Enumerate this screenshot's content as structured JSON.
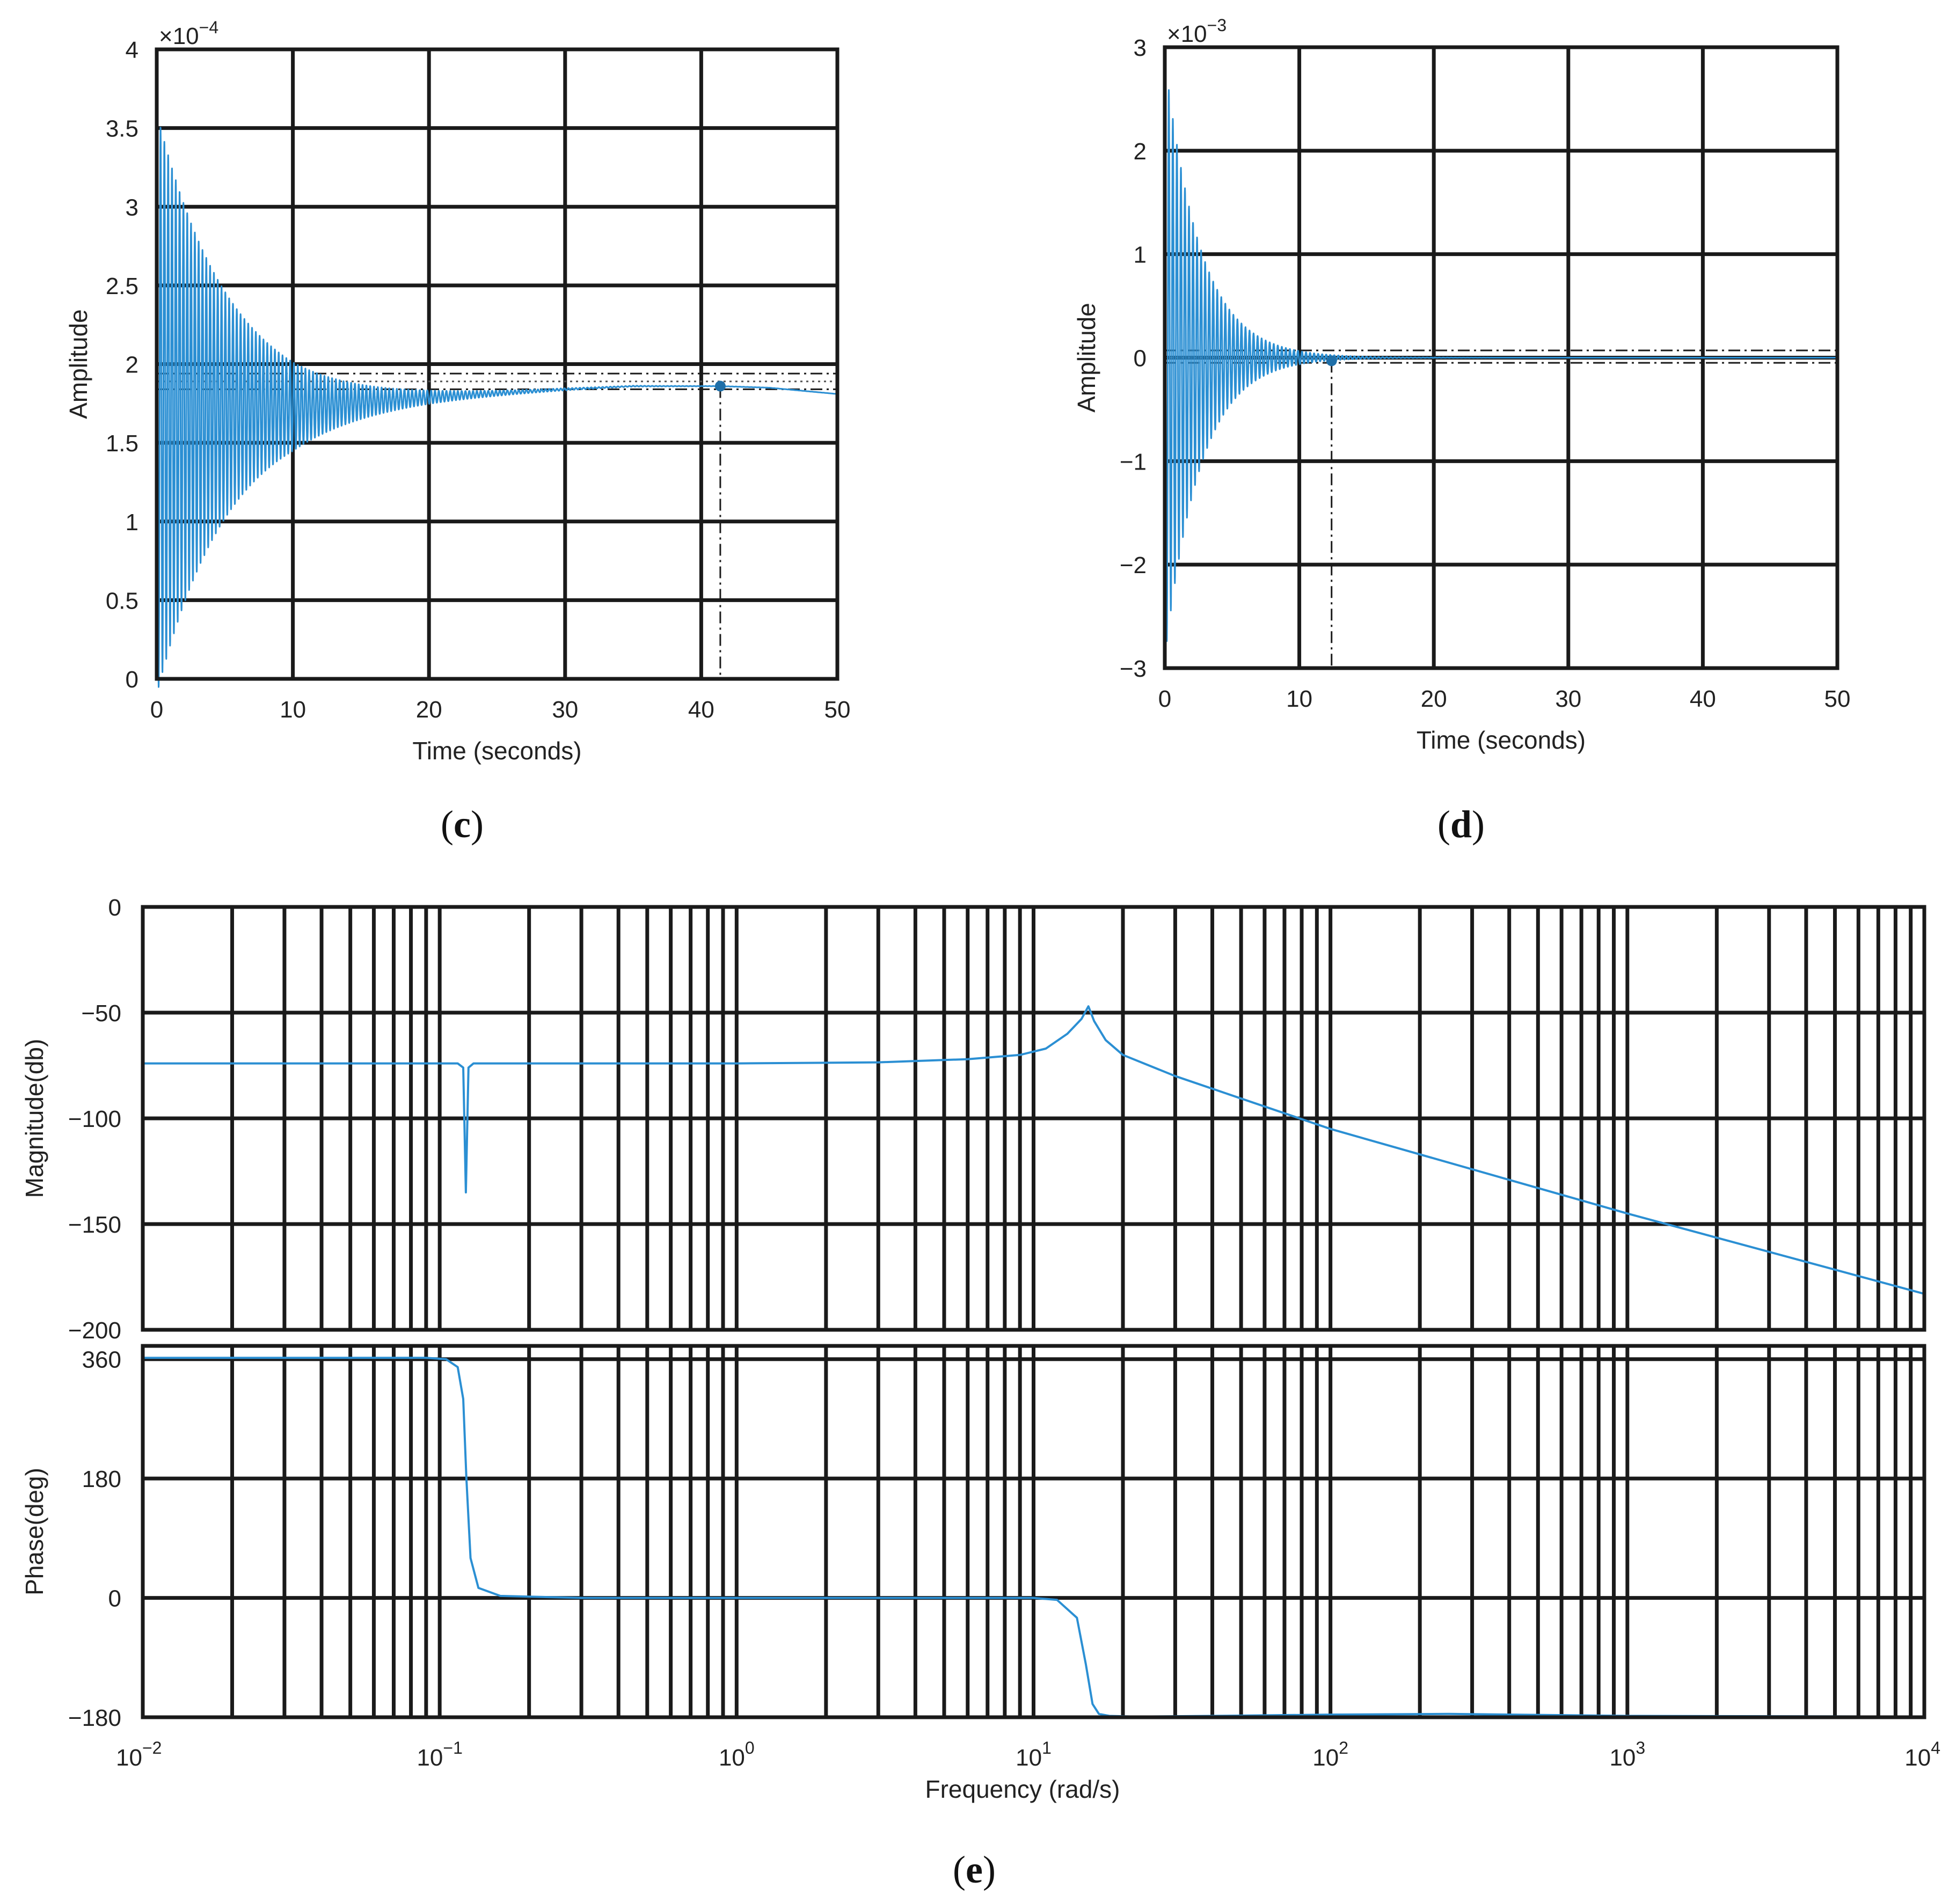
{
  "colors": {
    "series": "#2b8fd3",
    "grid": "#1a1a1a",
    "text": "#222222"
  },
  "chart_data": [
    {
      "id": "c",
      "type": "line",
      "caption": {
        "open": "(",
        "letter": "c",
        "close": ")"
      },
      "xlabel": "Time (seconds)",
      "ylabel": "Amplitude",
      "exponent_label": {
        "base": "×10",
        "exp": "−4"
      },
      "xlim": [
        0,
        50
      ],
      "ylim": [
        0,
        4
      ],
      "xticks": [
        0,
        10,
        20,
        30,
        40,
        50
      ],
      "xtick_labels": [
        "0",
        "10",
        "20",
        "30",
        "40",
        "50"
      ],
      "yticks": [
        0,
        0.5,
        1,
        1.5,
        2,
        2.5,
        3,
        3.5,
        4
      ],
      "ytick_labels": [
        "0",
        "0.5",
        "1",
        "1.5",
        "2",
        "2.5",
        "3",
        "3.5",
        "4"
      ],
      "grid": true,
      "response": {
        "kind": "decaying-oscillation",
        "initial_peak": 3.6,
        "decay_time": 8.5,
        "oscillation_period": 0.28,
        "baseline": [
          [
            0,
            1.75
          ],
          [
            5,
            1.74
          ],
          [
            10,
            1.73
          ],
          [
            20,
            1.79
          ],
          [
            30,
            1.84
          ],
          [
            35,
            1.86
          ],
          [
            41.4,
            1.86
          ],
          [
            45,
            1.85
          ],
          [
            50,
            1.81
          ]
        ]
      },
      "settling_marker": {
        "x": 41.4,
        "y": 1.86
      },
      "settling_band": [
        1.84,
        1.94
      ],
      "reference_level": 1.89
    },
    {
      "id": "d",
      "type": "line",
      "caption": {
        "open": "(",
        "letter": "d",
        "close": ")"
      },
      "xlabel": "Time (seconds)",
      "ylabel": "Amplitude",
      "exponent_label": {
        "base": "×10",
        "exp": "−3"
      },
      "xlim": [
        0,
        50
      ],
      "ylim": [
        -3,
        3
      ],
      "xticks": [
        0,
        10,
        20,
        30,
        40,
        50
      ],
      "xtick_labels": [
        "0",
        "10",
        "20",
        "30",
        "40",
        "50"
      ],
      "yticks": [
        -3,
        -2,
        -1,
        0,
        1,
        2,
        3
      ],
      "ytick_labels": [
        "−3",
        "−2",
        "−1",
        "0",
        "1",
        "2",
        "3"
      ],
      "grid": true,
      "response": {
        "kind": "decaying-oscillation",
        "initial_peak": 2.9,
        "decay_time": 4.2,
        "oscillation_period": 0.3,
        "baseline": [
          [
            0,
            0
          ],
          [
            50,
            0
          ]
        ]
      },
      "settling_marker": {
        "x": 12.4,
        "y": -0.03
      },
      "settling_band": [
        -0.05,
        0.07
      ],
      "reference_level": 0.0
    },
    {
      "id": "e-magnitude",
      "type": "line",
      "ylabel": "Magnitude(db)",
      "xscale": "log",
      "xlim": [
        0.01,
        10000
      ],
      "ylim": [
        -200,
        0
      ],
      "yticks": [
        -200,
        -150,
        -100,
        -50,
        0
      ],
      "ytick_labels": [
        "−200",
        "−150",
        "−100",
        "−50",
        "0"
      ],
      "grid": true,
      "x": [
        0.01,
        0.05,
        0.1,
        0.115,
        0.12,
        0.1225,
        0.125,
        0.13,
        0.2,
        1,
        3,
        6,
        9,
        11,
        13,
        14.5,
        15.3,
        16,
        17.5,
        20,
        30,
        100,
        1000,
        10000
      ],
      "y": [
        -74,
        -74,
        -74,
        -74,
        -76,
        -135,
        -76,
        -74,
        -74,
        -74,
        -73.5,
        -72,
        -70,
        -67,
        -60,
        -53,
        -47,
        -54,
        -63,
        -70,
        -80,
        -105,
        -145,
        -183
      ]
    },
    {
      "id": "e-phase",
      "type": "line",
      "caption": {
        "open": "(",
        "letter": "e",
        "close": ")"
      },
      "xlabel": "Frequency (rad/s)",
      "ylabel": "Phase(deg)",
      "xscale": "log",
      "xlim": [
        0.01,
        10000
      ],
      "ylim": [
        -180,
        380
      ],
      "xticks": [
        0.01,
        0.1,
        1,
        10,
        100,
        1000,
        10000
      ],
      "xtick_labels": [
        {
          "base": "10",
          "exp": "−2"
        },
        {
          "base": "10",
          "exp": "−1"
        },
        {
          "base": "10",
          "exp": "0"
        },
        {
          "base": "10",
          "exp": "1"
        },
        {
          "base": "10",
          "exp": "2"
        },
        {
          "base": "10",
          "exp": "3"
        },
        {
          "base": "10",
          "exp": "4"
        }
      ],
      "yticks": [
        -180,
        0,
        180,
        360
      ],
      "ytick_labels": [
        "−180",
        "0",
        "180",
        "360"
      ],
      "grid": true,
      "x": [
        0.01,
        0.09,
        0.105,
        0.115,
        0.12,
        0.123,
        0.127,
        0.135,
        0.16,
        0.3,
        1,
        5,
        10,
        12,
        14,
        15,
        15.8,
        16.6,
        18,
        22,
        40,
        100,
        250,
        1000,
        10000
      ],
      "y": [
        362,
        362,
        360,
        348,
        300,
        180,
        60,
        15,
        3,
        0,
        0,
        0,
        0,
        -3,
        -30,
        -100,
        -160,
        -175,
        -178,
        -179,
        -178,
        -176,
        -175,
        -178,
        -179
      ]
    }
  ]
}
